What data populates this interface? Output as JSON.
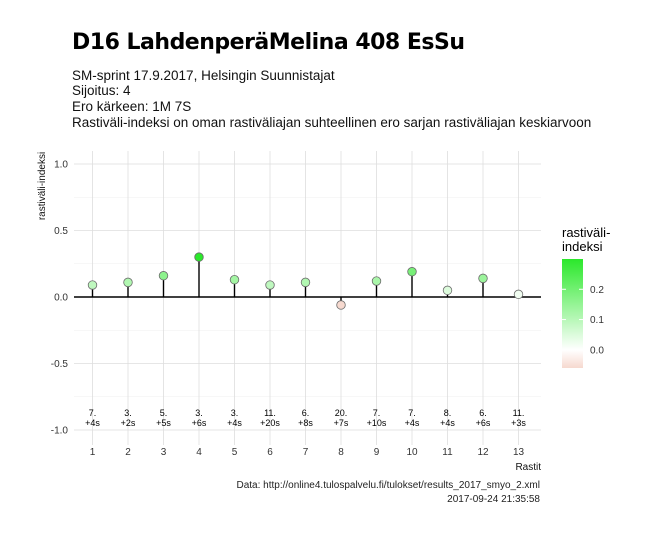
{
  "header": {
    "title": "D16 LahdenperäMelina 408 EsSu",
    "subtitle_lines": [
      "SM-sprint 17.9.2017, Helsingin Suunnistajat",
      "Sijoitus: 4",
      "Ero kärkeen: 1M 7S",
      "Rastiväli-indeksi on oman rastiväliajan suhteellinen ero sarjan rastiväliajan keskiarvoon"
    ]
  },
  "caption": {
    "source": "Data: http://online4.tulospalvelu.fi/tulokset/results_2017_smyo_2.xml",
    "timestamp": "2017-09-24 21:35:58"
  },
  "legend": {
    "title_lines": [
      "rastiväli-",
      "indeksi"
    ],
    "ticks": [
      "0.2",
      "0.1",
      "0.0"
    ],
    "tick_values": [
      0.2,
      0.1,
      0.0
    ],
    "range": [
      -0.06,
      0.3
    ],
    "colors": {
      "low": "#f6d9cf",
      "mid": "#ffffff",
      "high": "#2be82b"
    }
  },
  "chart_data": {
    "type": "scatter",
    "style": "lollipop",
    "xlabel": "Rastit",
    "ylabel": "rastiväli-indeksi",
    "ylim": [
      -1.0,
      1.0
    ],
    "yticks": [
      "1.0",
      "0.5",
      "0.0",
      "-0.5",
      "-1.0"
    ],
    "ytick_values": [
      1.0,
      0.5,
      0.0,
      -0.5,
      -1.0
    ],
    "x": [
      1,
      2,
      3,
      4,
      5,
      6,
      7,
      8,
      9,
      10,
      11,
      12,
      13
    ],
    "xticks": [
      "1",
      "2",
      "3",
      "4",
      "5",
      "6",
      "7",
      "8",
      "9",
      "10",
      "11",
      "12",
      "13"
    ],
    "values": [
      0.09,
      0.11,
      0.16,
      0.3,
      0.13,
      0.09,
      0.11,
      -0.06,
      0.12,
      0.19,
      0.05,
      0.14,
      0.02
    ],
    "annotation_ranks": [
      "7.",
      "3.",
      "5.",
      "3.",
      "3.",
      "11.",
      "6.",
      "20.",
      "7.",
      "7.",
      "8.",
      "6.",
      "11."
    ],
    "annotation_diffs": [
      "+4s",
      "+2s",
      "+5s",
      "+6s",
      "+4s",
      "+20s",
      "+8s",
      "+7s",
      "+10s",
      "+4s",
      "+4s",
      "+6s",
      "+3s"
    ],
    "grid": true,
    "legend_position": "right"
  }
}
